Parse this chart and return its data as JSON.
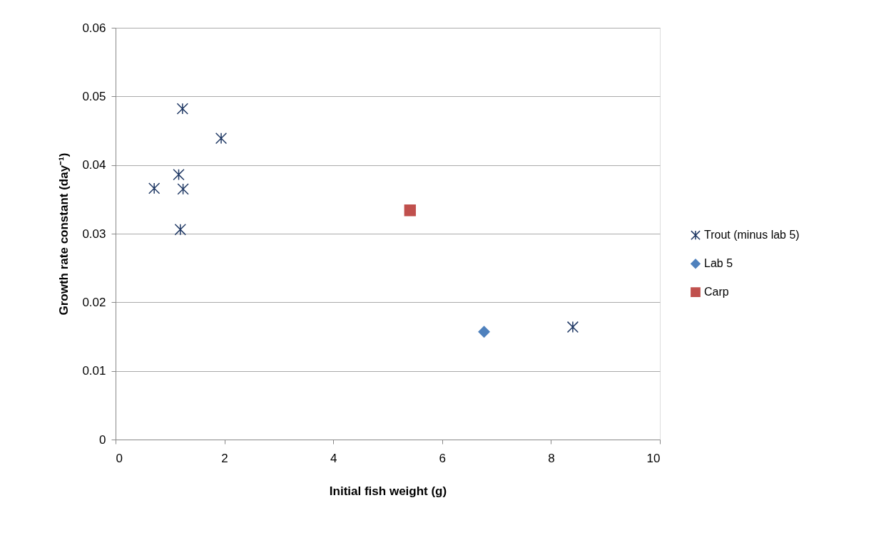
{
  "chart_data": {
    "type": "scatter",
    "xlabel": "Initial fish weight (g)",
    "ylabel": "Growth rate constant (day⁻¹)",
    "xlim": [
      0,
      10
    ],
    "xticks": [
      0,
      2,
      4,
      6,
      8,
      10
    ],
    "ylim": [
      0,
      0.06
    ],
    "yticks": [
      {
        "value": 0,
        "label": "0"
      },
      0.01,
      0.02,
      0.03,
      0.04,
      0.05,
      0.06
    ],
    "grid": "y",
    "legend": "right",
    "series": [
      {
        "name": "Trout (minus lab 5)",
        "color": "#1f3864",
        "marker": "cross",
        "x": [
          1.23,
          1.94,
          1.16,
          0.71,
          1.24,
          1.19,
          8.4
        ],
        "values": [
          0.0482,
          0.0439,
          0.0386,
          0.0366,
          0.0365,
          0.0306,
          0.0164
        ]
      },
      {
        "name": "Lab 5",
        "color": "#4f81bd",
        "marker": "diamond",
        "x": [
          6.77
        ],
        "values": [
          0.0157
        ]
      },
      {
        "name": "Carp",
        "color": "#c0504d",
        "marker": "square",
        "x": [
          5.41
        ],
        "values": [
          0.0334
        ]
      }
    ]
  }
}
